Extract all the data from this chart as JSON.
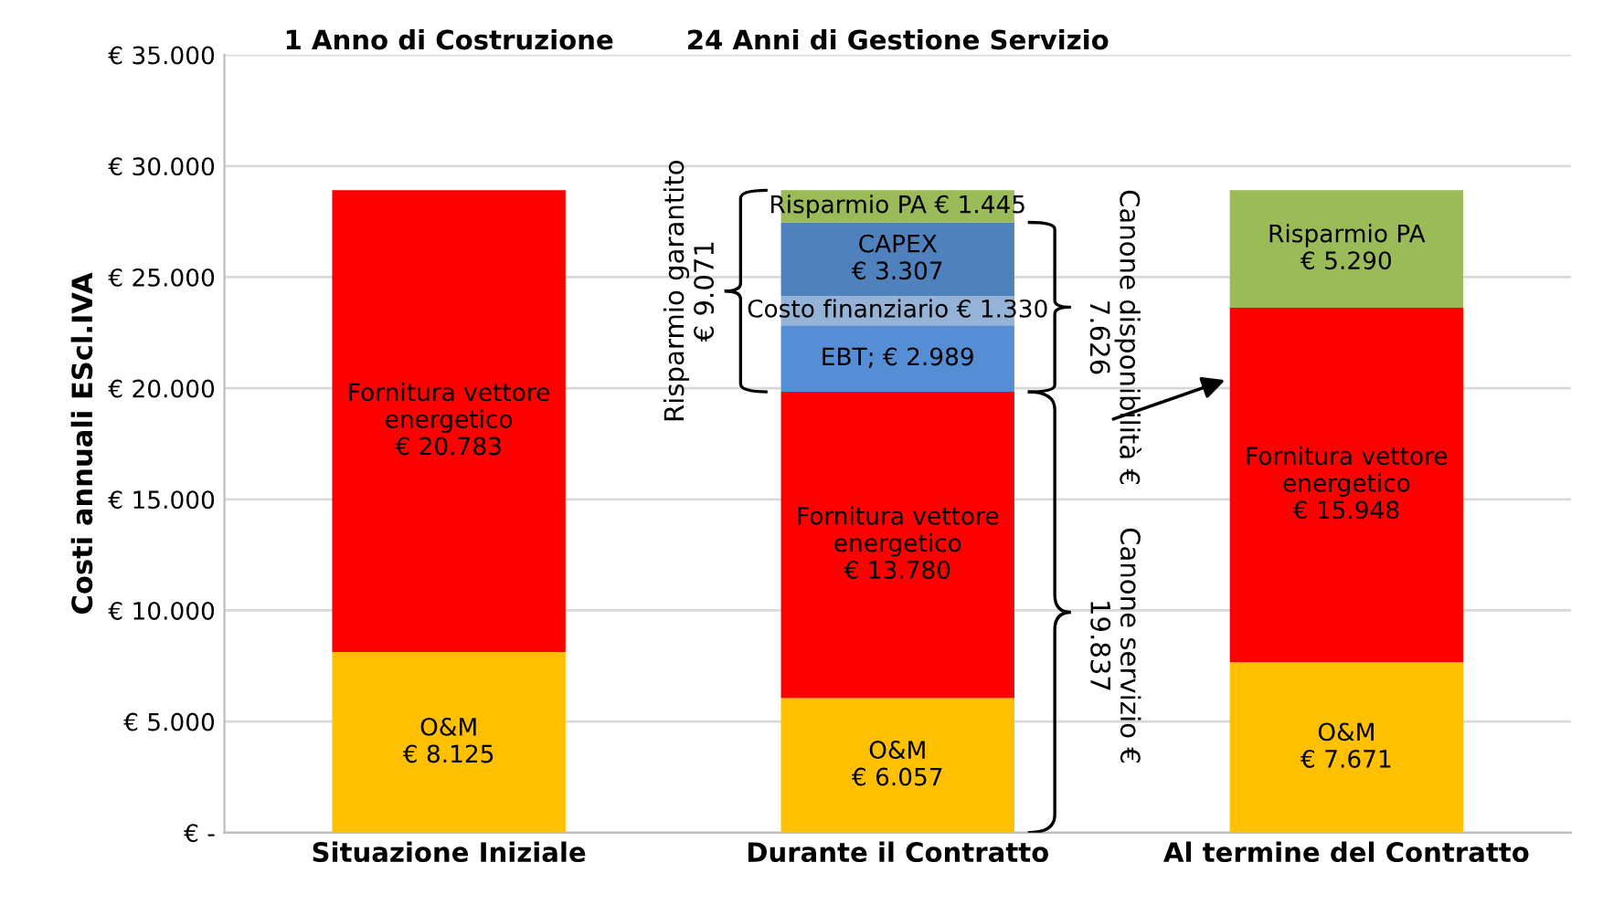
{
  "chart_data": {
    "type": "bar",
    "stacked": true,
    "ylabel": "Costi annuali EScl.IVA",
    "categories": [
      "Situazione Iniziale",
      "Durante il Contratto",
      "Al termine del Contratto"
    ],
    "series": [
      {
        "color": "#ffc000",
        "values": [
          8125,
          6057,
          7671
        ],
        "value_labels": [
          "O&M\n€ 8.125",
          "O&M\n€ 6.057",
          "O&M\n€ 7.671"
        ]
      },
      {
        "color": "#ff0000",
        "values": [
          20783,
          13780,
          15948
        ],
        "value_labels": [
          "Fornitura vettore\nenergetico\n€ 20.783",
          "Fornitura vettore\nenergetico\n€ 13.780",
          "Fornitura vettore\nenergetico\n€ 15.948"
        ]
      },
      {
        "color": "#558ed5",
        "values": [
          null,
          2989,
          null
        ],
        "value_labels": [
          null,
          "EBT; € 2.989",
          null
        ]
      },
      {
        "color": "#95b3d7",
        "values": [
          null,
          1330,
          null
        ],
        "value_labels": [
          null,
          "Costo finanziario\n€ 1.330",
          null
        ]
      },
      {
        "color": "#4f81bd",
        "values": [
          null,
          3307,
          null
        ],
        "value_labels": [
          null,
          "CAPEX\n€ 3.307",
          null
        ]
      },
      {
        "color": "#9bbb59",
        "values": [
          null,
          1445,
          5290
        ],
        "value_labels": [
          null,
          "Risparmio PA\n€ 1.445",
          "Risparmio PA\n€ 5.290"
        ]
      }
    ],
    "ylim": [
      0,
      35000
    ],
    "yticks": [
      {
        "value": 0,
        "label": "€ -"
      },
      {
        "value": 5000,
        "label": "€ 5.000"
      },
      {
        "value": 10000,
        "label": "€ 10.000"
      },
      {
        "value": 15000,
        "label": "€ 15.000"
      },
      {
        "value": 20000,
        "label": "€ 20.000"
      },
      {
        "value": 25000,
        "label": "€ 25.000"
      },
      {
        "value": 30000,
        "label": "€ 30.000"
      },
      {
        "value": 35000,
        "label": "€ 35.000"
      }
    ],
    "grid": "y",
    "annotations": [
      "1 Anno di Costruzione",
      "24 Anni di Gestione Servizio",
      "Risparmio garantito\n€ 9.071",
      "Canone disponibilità €\n7.626",
      "Canone servizio €\n19.837"
    ]
  }
}
